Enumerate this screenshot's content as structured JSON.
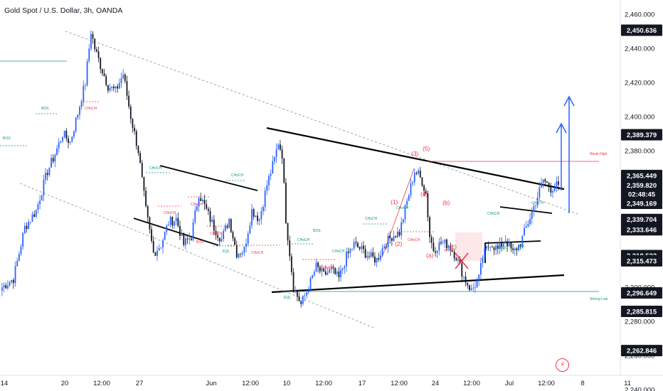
{
  "title": "Gold Spot / U.S. Dollar, 3h, OANDA",
  "colors": {
    "up": "#2962ff",
    "down": "#131722",
    "accent": "#f23645",
    "teal": "#089981",
    "zone": "#26a69a"
  },
  "y_axis_ticks": [
    "2,460.000",
    "2,440.000",
    "2,420.000",
    "2,400.000",
    "2,380.000",
    "2,360.000",
    "2,340.000",
    "2,320.000",
    "2,300.000",
    "2,280.000",
    "2,260.000",
    "2,240.000"
  ],
  "x_axis_ticks": [
    "14",
    "20",
    "12:00",
    "27",
    "Jun",
    "12:00",
    "10",
    "12:00",
    "17",
    "12:00",
    "24",
    "12:00",
    "Jul",
    "12:00",
    "8",
    "11"
  ],
  "price_tags": [
    {
      "label": "2,450.636",
      "value": 2450.636
    },
    {
      "label": "2,389.379",
      "value": 2389.379
    },
    {
      "label": "2,365.449",
      "value": 2365.449
    },
    {
      "label": "2,359.820",
      "value": 2359.82
    },
    {
      "label": "02:48:45",
      "value": 2354.5
    },
    {
      "label": "2,349.169",
      "value": 2349.169
    },
    {
      "label": "2,339.704",
      "value": 2339.704
    },
    {
      "label": "2,333.646",
      "value": 2333.646
    },
    {
      "label": "2,318.523",
      "value": 2318.523
    },
    {
      "label": "2,315.473",
      "value": 2315.473
    },
    {
      "label": "2,296.649",
      "value": 2296.649
    },
    {
      "label": "2,285.815",
      "value": 2285.815
    },
    {
      "label": "2,262.846",
      "value": 2262.846
    }
  ],
  "annotations": {
    "weak_high": "Weak High",
    "strong_low": "Strong Low",
    "bos": "BOS",
    "choch": "CHoCH",
    "eql": "EQL"
  },
  "waves": [
    "(1)",
    "(2)",
    "(3)",
    "(4)",
    "(5)",
    "(a)",
    "(b)",
    "(c)"
  ],
  "chart_data": {
    "type": "candlestick",
    "title": "Gold Spot / U.S. Dollar, 3h, OANDA",
    "ylim": [
      2235,
      2465
    ],
    "series": [
      {
        "name": "XAUUSD 3h",
        "anchors": [
          [
            0,
            2300
          ],
          [
            6,
            2305
          ],
          [
            12,
            2335
          ],
          [
            18,
            2345
          ],
          [
            24,
            2368
          ],
          [
            28,
            2378
          ],
          [
            32,
            2390
          ],
          [
            36,
            2385
          ],
          [
            40,
            2402
          ],
          [
            44,
            2420
          ],
          [
            47,
            2450
          ],
          [
            49,
            2440
          ],
          [
            52,
            2430
          ],
          [
            56,
            2418
          ],
          [
            60,
            2415
          ],
          [
            64,
            2425
          ],
          [
            68,
            2400
          ],
          [
            72,
            2380
          ],
          [
            76,
            2345
          ],
          [
            80,
            2320
          ],
          [
            84,
            2325
          ],
          [
            88,
            2338
          ],
          [
            92,
            2340
          ],
          [
            96,
            2325
          ],
          [
            100,
            2330
          ],
          [
            104,
            2355
          ],
          [
            108,
            2345
          ],
          [
            112,
            2335
          ],
          [
            116,
            2328
          ],
          [
            120,
            2340
          ],
          [
            124,
            2320
          ],
          [
            128,
            2322
          ],
          [
            132,
            2345
          ],
          [
            136,
            2340
          ],
          [
            140,
            2360
          ],
          [
            144,
            2375
          ],
          [
            146,
            2385
          ],
          [
            148,
            2378
          ],
          [
            150,
            2340
          ],
          [
            154,
            2300
          ],
          [
            158,
            2290
          ],
          [
            162,
            2300
          ],
          [
            166,
            2312
          ],
          [
            170,
            2307
          ],
          [
            174,
            2310
          ],
          [
            178,
            2305
          ],
          [
            182,
            2318
          ],
          [
            186,
            2325
          ],
          [
            190,
            2322
          ],
          [
            194,
            2318
          ],
          [
            198,
            2316
          ],
          [
            202,
            2325
          ],
          [
            206,
            2330
          ],
          [
            210,
            2332
          ],
          [
            214,
            2350
          ],
          [
            218,
            2368
          ],
          [
            220,
            2366
          ],
          [
            222,
            2362
          ],
          [
            224,
            2355
          ],
          [
            226,
            2330
          ],
          [
            228,
            2322
          ],
          [
            232,
            2326
          ],
          [
            236,
            2325
          ],
          [
            240,
            2318
          ],
          [
            244,
            2306
          ],
          [
            248,
            2298
          ],
          [
            252,
            2305
          ],
          [
            254,
            2318
          ],
          [
            258,
            2326
          ],
          [
            262,
            2322
          ],
          [
            266,
            2328
          ],
          [
            270,
            2320
          ],
          [
            274,
            2326
          ],
          [
            278,
            2338
          ],
          [
            282,
            2350
          ],
          [
            286,
            2363
          ],
          [
            290,
            2358
          ],
          [
            294,
            2360
          ]
        ]
      }
    ]
  }
}
